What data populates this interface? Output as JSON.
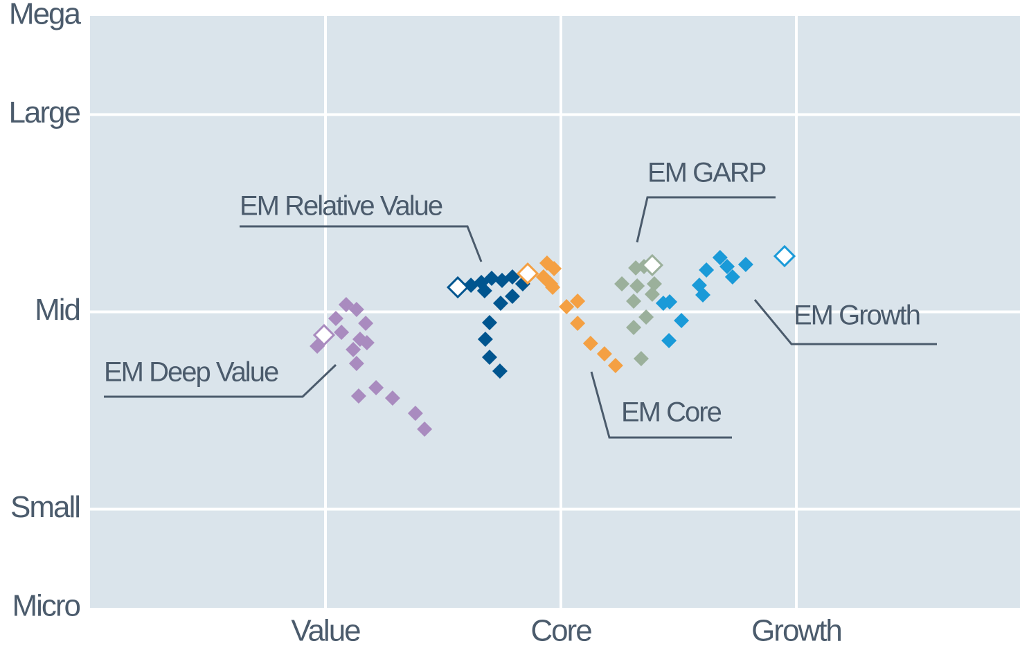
{
  "chart_data": {
    "type": "scatter",
    "xlim": [
      -2,
      1.95
    ],
    "xticks": [
      {
        "value": -1,
        "label": "Value"
      },
      {
        "value": 0,
        "label": "Core"
      },
      {
        "value": 1,
        "label": "Growth"
      }
    ],
    "ylim": [
      0,
      6
    ],
    "yticks": [
      {
        "value": 0,
        "label": "Micro"
      },
      {
        "value": 1,
        "label": "Small"
      },
      {
        "value": 3,
        "label": "Mid"
      },
      {
        "value": 5,
        "label": "Large"
      },
      {
        "value": 6,
        "label": "Mega"
      }
    ],
    "grid": true,
    "series": [
      {
        "name": "EM Deep Value",
        "color": "#a98bbf",
        "x": [
          -1.006,
          -0.912,
          -0.868,
          -0.956,
          -0.829,
          -0.932,
          -0.853,
          -0.824,
          -1.035,
          -0.882,
          -0.868,
          -0.859,
          -0.785,
          -0.715,
          -0.618,
          -0.579
        ],
        "y": [
          2.765,
          3.074,
          3.025,
          2.933,
          2.884,
          2.793,
          2.723,
          2.688,
          2.653,
          2.618,
          2.477,
          2.147,
          2.232,
          2.126,
          1.972,
          1.811
        ]
      },
      {
        "name": "EM Relative Value",
        "color": "#00558f",
        "x": [
          -0.438,
          -0.382,
          -0.338,
          -0.294,
          -0.25,
          -0.206,
          -0.162,
          -0.324,
          -0.206,
          -0.256,
          -0.303,
          -0.321,
          -0.303,
          -0.259
        ],
        "y": [
          3.249,
          3.27,
          3.298,
          3.34,
          3.319,
          3.354,
          3.284,
          3.214,
          3.158,
          3.088,
          2.891,
          2.723,
          2.54,
          2.4
        ]
      },
      {
        "name": "EM Core",
        "color": "#f4a043",
        "x": [
          -0.141,
          -0.059,
          -0.029,
          -0.074,
          -0.044,
          -0.035,
          0.024,
          0.071,
          0.071,
          0.126,
          0.185,
          0.232
        ],
        "y": [
          3.389,
          3.495,
          3.439,
          3.354,
          3.284,
          3.249,
          3.053,
          3.109,
          2.884,
          2.681,
          2.575,
          2.456
        ]
      },
      {
        "name": "EM GARP",
        "color": "#9bb09b",
        "x": [
          0.388,
          0.318,
          0.353,
          0.259,
          0.324,
          0.397,
          0.388,
          0.309,
          0.362,
          0.309,
          0.341
        ],
        "y": [
          3.474,
          3.446,
          3.46,
          3.284,
          3.263,
          3.284,
          3.179,
          3.109,
          2.947,
          2.842,
          2.526
        ]
      },
      {
        "name": "EM Growth",
        "color": "#1a9ad8",
        "x": [
          0.95,
          0.676,
          0.618,
          0.706,
          0.785,
          0.729,
          0.588,
          0.603,
          0.435,
          0.462,
          0.512,
          0.459
        ],
        "y": [
          3.565,
          3.551,
          3.425,
          3.46,
          3.481,
          3.354,
          3.27,
          3.172,
          3.088,
          3.102,
          2.912,
          2.709
        ]
      }
    ]
  }
}
